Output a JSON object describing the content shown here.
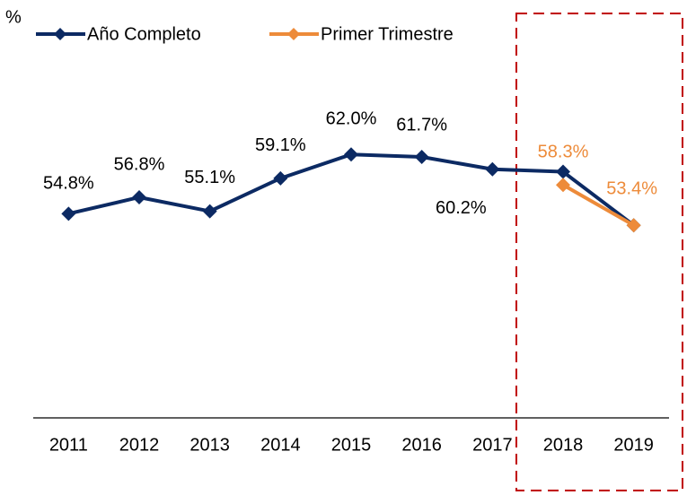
{
  "chart_data": {
    "type": "line",
    "y_label": "%",
    "categories": [
      "2011",
      "2012",
      "2013",
      "2014",
      "2015",
      "2016",
      "2017",
      "2018",
      "2019"
    ],
    "series": [
      {
        "name": "Año Completo",
        "color": "#0c2a63",
        "values": [
          54.8,
          56.8,
          55.1,
          59.1,
          62.0,
          61.7,
          60.2,
          59.9,
          53.4
        ],
        "value_labels": [
          "54.8%",
          "56.8%",
          "55.1%",
          "59.1%",
          "62.0%",
          "61.7%",
          "60.2%",
          null,
          null
        ]
      },
      {
        "name": "Primer Trimestre",
        "color": "#ed8b3a",
        "values": [
          null,
          null,
          null,
          null,
          null,
          null,
          null,
          58.3,
          53.4
        ],
        "value_labels": [
          null,
          null,
          null,
          null,
          null,
          null,
          null,
          "58.3%",
          "53.4%"
        ]
      }
    ],
    "ylim": [
      30,
      80
    ],
    "grid": false,
    "legend": "top-left"
  }
}
